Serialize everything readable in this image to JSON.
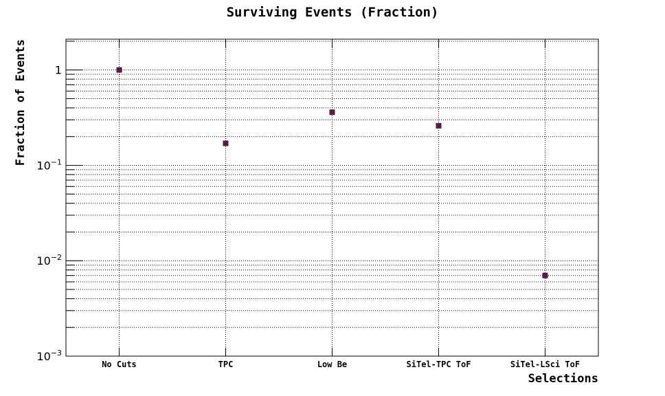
{
  "colors": {
    "marker": "#5a1846",
    "axis": "#000000",
    "background": "#ffffff"
  },
  "chart_data": {
    "type": "scatter",
    "title": "Surviving Events (Fraction)",
    "xlabel": "Selections",
    "ylabel": "Fraction of Events",
    "y_scale": "log",
    "ylim": [
      0.001,
      2.1
    ],
    "grid": true,
    "categories": [
      "No Cuts",
      "TPC",
      "Low Be",
      "SiTel-TPC ToF",
      "SiTel-LSci ToF"
    ],
    "values": [
      1.0,
      0.17,
      0.36,
      0.26,
      0.007
    ],
    "y_tick_labels": [
      {
        "base": "10",
        "exp": "−3",
        "value": 0.001
      },
      {
        "base": "10",
        "exp": "−2",
        "value": 0.01
      },
      {
        "base": "10",
        "exp": "−1",
        "value": 0.1
      },
      {
        "base": "1",
        "exp": "",
        "value": 1
      }
    ],
    "marker_shape": "square"
  }
}
